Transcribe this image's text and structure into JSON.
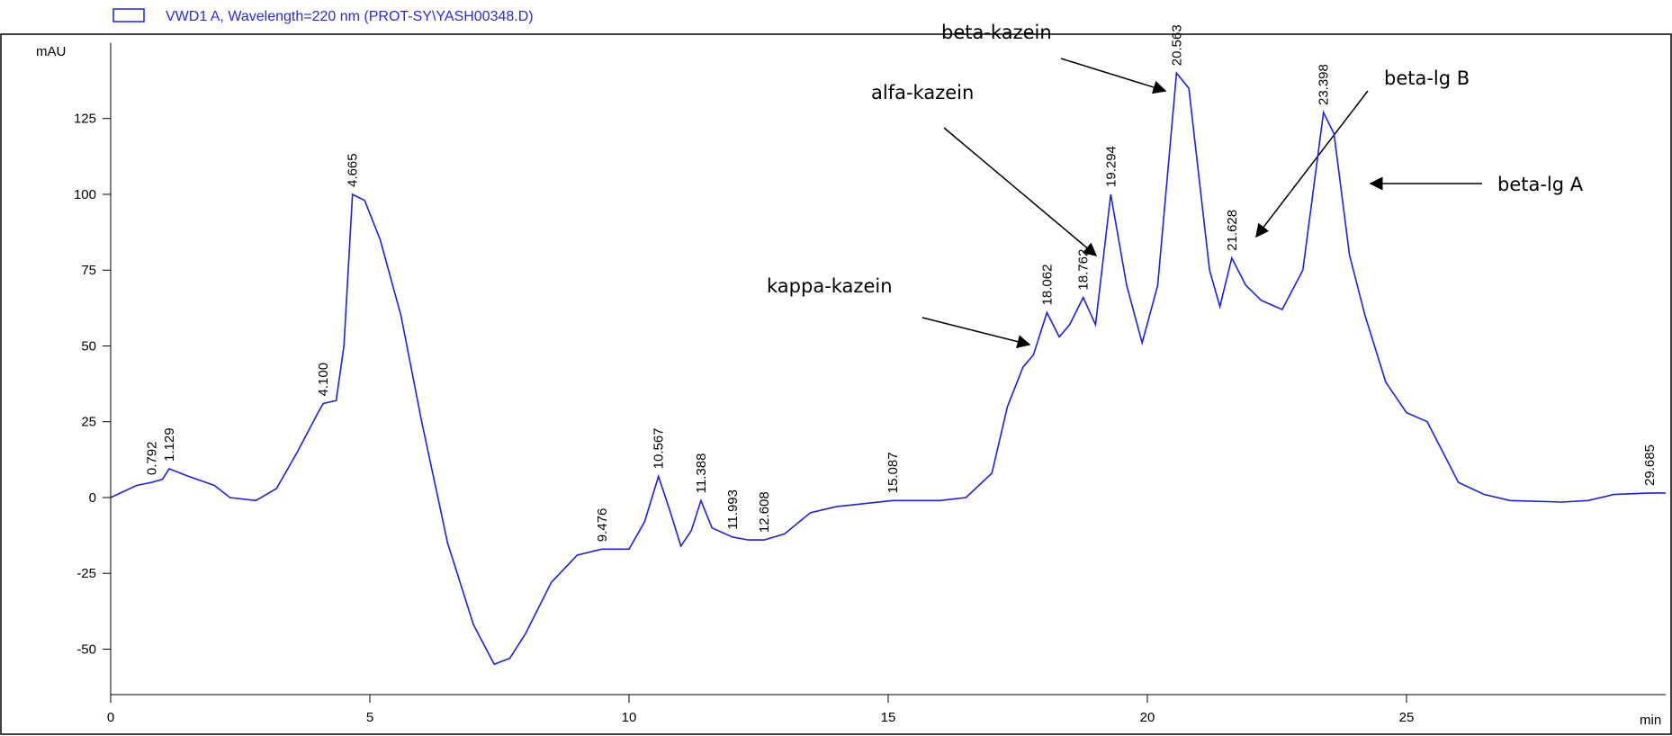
{
  "chart_data": {
    "type": "line",
    "legend": "VWD1 A, Wavelength=220 nm (PROT-SY\\YASH00348.D)",
    "ylabel": "mAU",
    "xlabel": "min",
    "xlim": [
      0,
      30
    ],
    "ylim": [
      -65,
      150
    ],
    "xticks": [
      0,
      5,
      10,
      15,
      20,
      25
    ],
    "yticks": [
      -50,
      -25,
      0,
      25,
      50,
      75,
      100,
      125
    ],
    "series": [
      {
        "color": "#1f1fe0",
        "x": [
          0,
          0.5,
          0.792,
          1.0,
          1.129,
          1.5,
          2.0,
          2.3,
          2.8,
          3.2,
          3.6,
          4.0,
          4.1,
          4.35,
          4.5,
          4.665,
          4.9,
          5.2,
          5.6,
          6.0,
          6.5,
          7.0,
          7.4,
          7.7,
          8.0,
          8.5,
          9.0,
          9.476,
          10.0,
          10.3,
          10.567,
          10.8,
          11.0,
          11.2,
          11.388,
          11.6,
          11.993,
          12.3,
          12.608,
          13.0,
          13.5,
          14.0,
          15.087,
          16.0,
          16.5,
          17.0,
          17.3,
          17.6,
          17.8,
          18.062,
          18.3,
          18.5,
          18.762,
          19.0,
          19.294,
          19.6,
          19.9,
          20.2,
          20.563,
          20.8,
          21.2,
          21.4,
          21.628,
          21.9,
          22.2,
          22.6,
          23.0,
          23.398,
          23.6,
          23.9,
          24.2,
          24.6,
          25.0,
          25.4,
          25.7,
          26.0,
          26.5,
          27.0,
          28.0,
          28.5,
          29.0,
          29.685,
          30.0
        ],
        "values": [
          0,
          4,
          5,
          6,
          9.5,
          7,
          4,
          0,
          -1,
          3,
          15,
          28,
          31,
          32,
          50,
          100,
          98,
          85,
          60,
          25,
          -15,
          -42,
          -55,
          -53,
          -45,
          -28,
          -19,
          -17,
          -17,
          -8,
          7,
          -5,
          -16,
          -11,
          -1,
          -10,
          -13,
          -14,
          -14,
          -12,
          -5,
          -3,
          -1,
          -1,
          0,
          8,
          30,
          43,
          47,
          61,
          53,
          57,
          66,
          57,
          100,
          70,
          51,
          70,
          140,
          135,
          75,
          63,
          79,
          70,
          65,
          62,
          75,
          127,
          120,
          80,
          60,
          38,
          28,
          25,
          15,
          5,
          1,
          -1,
          -1.5,
          -1,
          1,
          1.5,
          1.5
        ]
      }
    ],
    "peaks": [
      0.792,
      1.129,
      {
        "value": 4.1,
        "label": "4.100"
      },
      4.665,
      9.476,
      10.567,
      11.388,
      11.993,
      12.608,
      15.087,
      18.062,
      18.762,
      19.294,
      20.563,
      21.628,
      23.398,
      29.685
    ],
    "annotations": [
      "beta-kazein",
      "alfa-kazein",
      "kappa-kazein",
      "beta-lg B",
      "beta-lg A"
    ]
  }
}
